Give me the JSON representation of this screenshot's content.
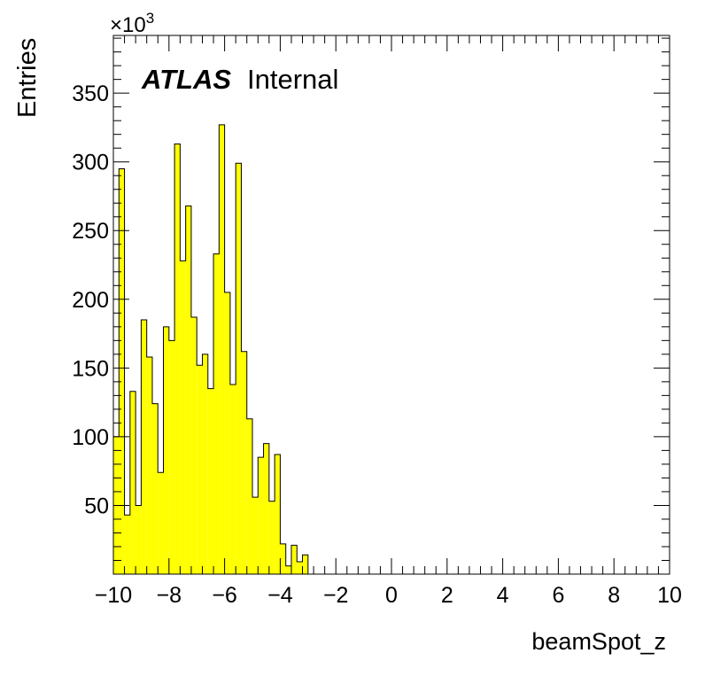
{
  "chart_data": {
    "type": "bar",
    "style": "histogram",
    "fill_color": "#ffff00",
    "edge_color": "#000000",
    "xlabel": "beamSpot_z",
    "ylabel": "Entries",
    "y_multiplier": "×10",
    "y_multiplier_exponent": "3",
    "label_bold": "ATLAS",
    "label_regular": "Internal",
    "xlim": [
      -10,
      10
    ],
    "ylim": [
      0,
      392
    ],
    "x_ticks": [
      "−10",
      "−8",
      "−6",
      "−4",
      "−2",
      "0",
      "2",
      "4",
      "6",
      "8",
      "10"
    ],
    "y_ticks": [
      "50",
      "100",
      "150",
      "200",
      "250",
      "300",
      "350"
    ],
    "bin_width": 0.2,
    "x_start": -10,
    "values": [
      100,
      295,
      43,
      133,
      50,
      185,
      158,
      124,
      74,
      180,
      170,
      313,
      228,
      268,
      187,
      152,
      160,
      135,
      233,
      327,
      205,
      138,
      299,
      162,
      113,
      56,
      85,
      95,
      53,
      87,
      22,
      6,
      21,
      9,
      14
    ]
  }
}
